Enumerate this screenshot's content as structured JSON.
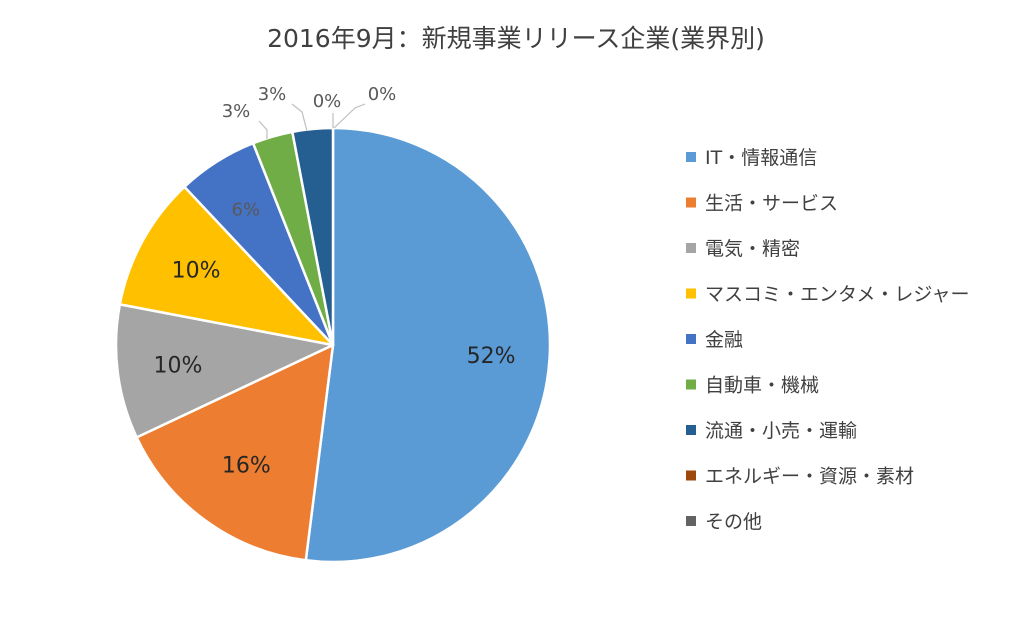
{
  "chart_data": {
    "type": "pie",
    "title": "2016年9月：新規事業リリース企業(業界別)",
    "slices": [
      {
        "label": "IT・情報通信",
        "value": 52,
        "display": "52%",
        "color": "#5B9BD5"
      },
      {
        "label": "生活・サービス",
        "value": 16,
        "display": "16%",
        "color": "#ED7D31"
      },
      {
        "label": "電気・精密",
        "value": 10,
        "display": "10%",
        "color": "#A5A5A5"
      },
      {
        "label": "マスコミ・エンタメ・レジャー",
        "value": 10,
        "display": "10%",
        "color": "#FFC000"
      },
      {
        "label": "金融",
        "value": 6,
        "display": "6%",
        "color": "#4472C4"
      },
      {
        "label": "自動車・機械",
        "value": 3,
        "display": "3%",
        "color": "#70AD47"
      },
      {
        "label": "流通・小売・運輸",
        "value": 3,
        "display": "3%",
        "color": "#255E91"
      },
      {
        "label": "エネルギー・資源・素材",
        "value": 0,
        "display": "0%",
        "color": "#9E480E"
      },
      {
        "label": "その他",
        "value": 0,
        "display": "0%",
        "color": "#636363"
      }
    ],
    "legend_position": "right"
  }
}
